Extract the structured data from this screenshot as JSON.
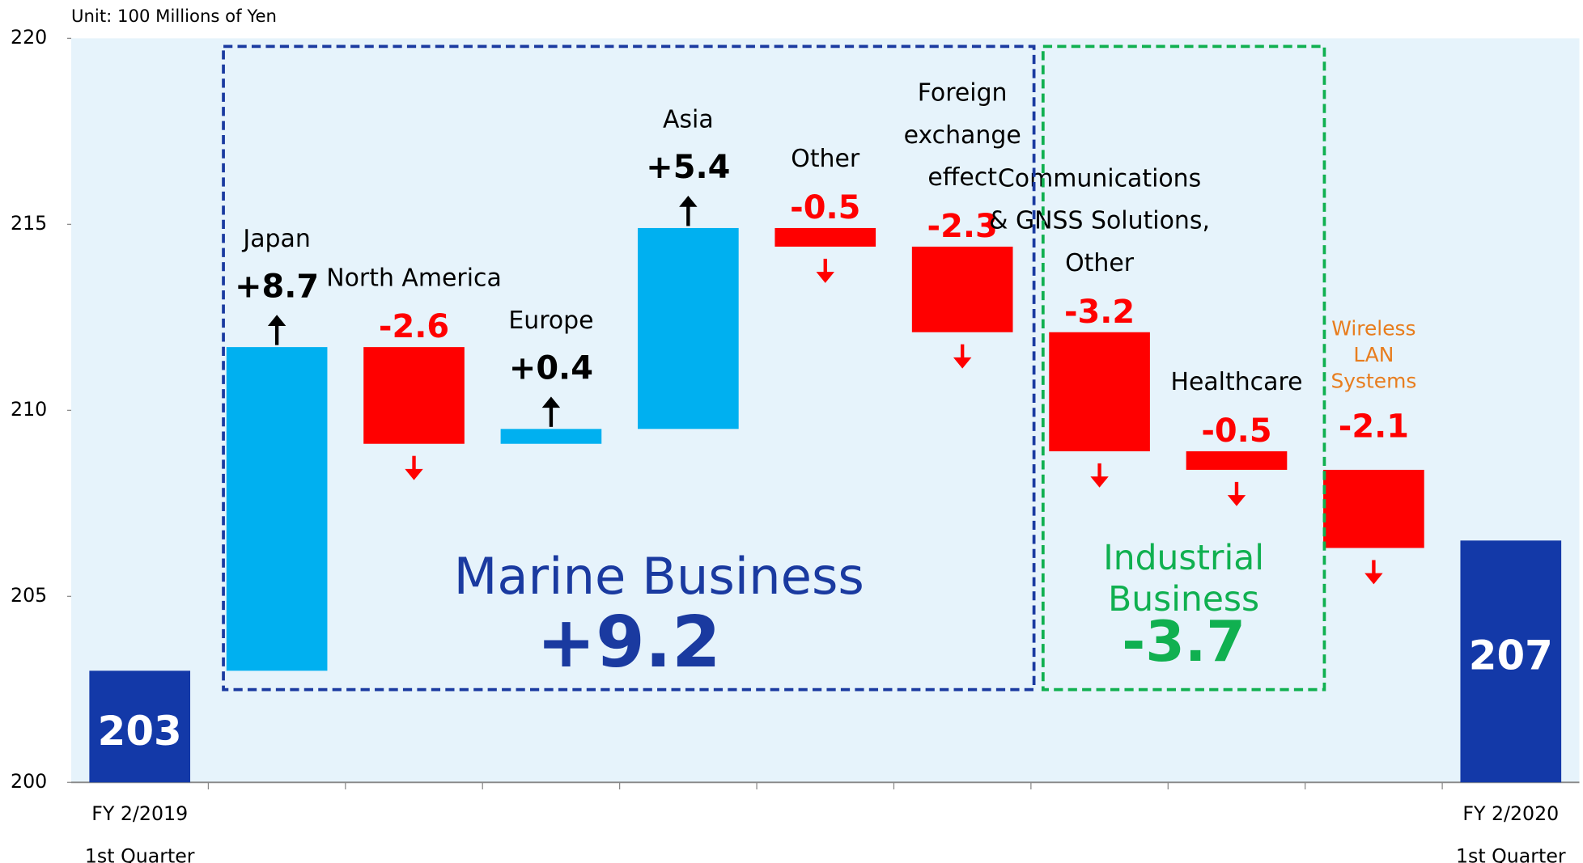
{
  "chart_data": {
    "type": "waterfall",
    "unit_note": "Unit: 100 Millions of Yen",
    "categories": [
      "FY 2/2019\n1st Quarter",
      "Japan",
      "North America",
      "Europe",
      "Asia",
      "Other",
      "Foreign\nexchange\neffect",
      "Communications\n& GNSS Solutions,\nOther",
      "Healthcare",
      "Wireless\nLAN\nSystems",
      "FY 2/2020\n1st Quarter"
    ],
    "measures": [
      "total",
      "relative",
      "relative",
      "relative",
      "relative",
      "relative",
      "relative",
      "relative",
      "relative",
      "relative",
      "total"
    ],
    "values": [
      203,
      8.7,
      -2.6,
      0.4,
      5.4,
      -0.5,
      -2.3,
      -3.2,
      -0.5,
      -2.1,
      206.5
    ],
    "value_labels": [
      "203",
      "+8.7",
      "-2.6",
      "+0.4",
      "+5.4",
      "-0.5",
      "-2.3",
      "-3.2",
      "-0.5",
      "-2.1",
      "207"
    ],
    "label_colors": [
      "#000000",
      "#000000",
      "#000000",
      "#000000",
      "#000000",
      "#000000",
      "#000000",
      "#000000",
      "#000000",
      "#e87d1e",
      "#000000"
    ],
    "colors": {
      "increase": "#00b0f0",
      "decrease": "#ff0000",
      "total": "#1339a8"
    },
    "ylim": [
      200,
      220
    ],
    "yticks": [
      200,
      205,
      210,
      215,
      220
    ],
    "grid": false,
    "groups": [
      {
        "name": "Marine Business",
        "value": 9.2,
        "value_label": "+9.2",
        "color": "#1a3aa0"
      },
      {
        "name": "Industrial\nBusiness",
        "value": -3.7,
        "value_label": "-3.7",
        "color": "#10b050"
      }
    ]
  }
}
